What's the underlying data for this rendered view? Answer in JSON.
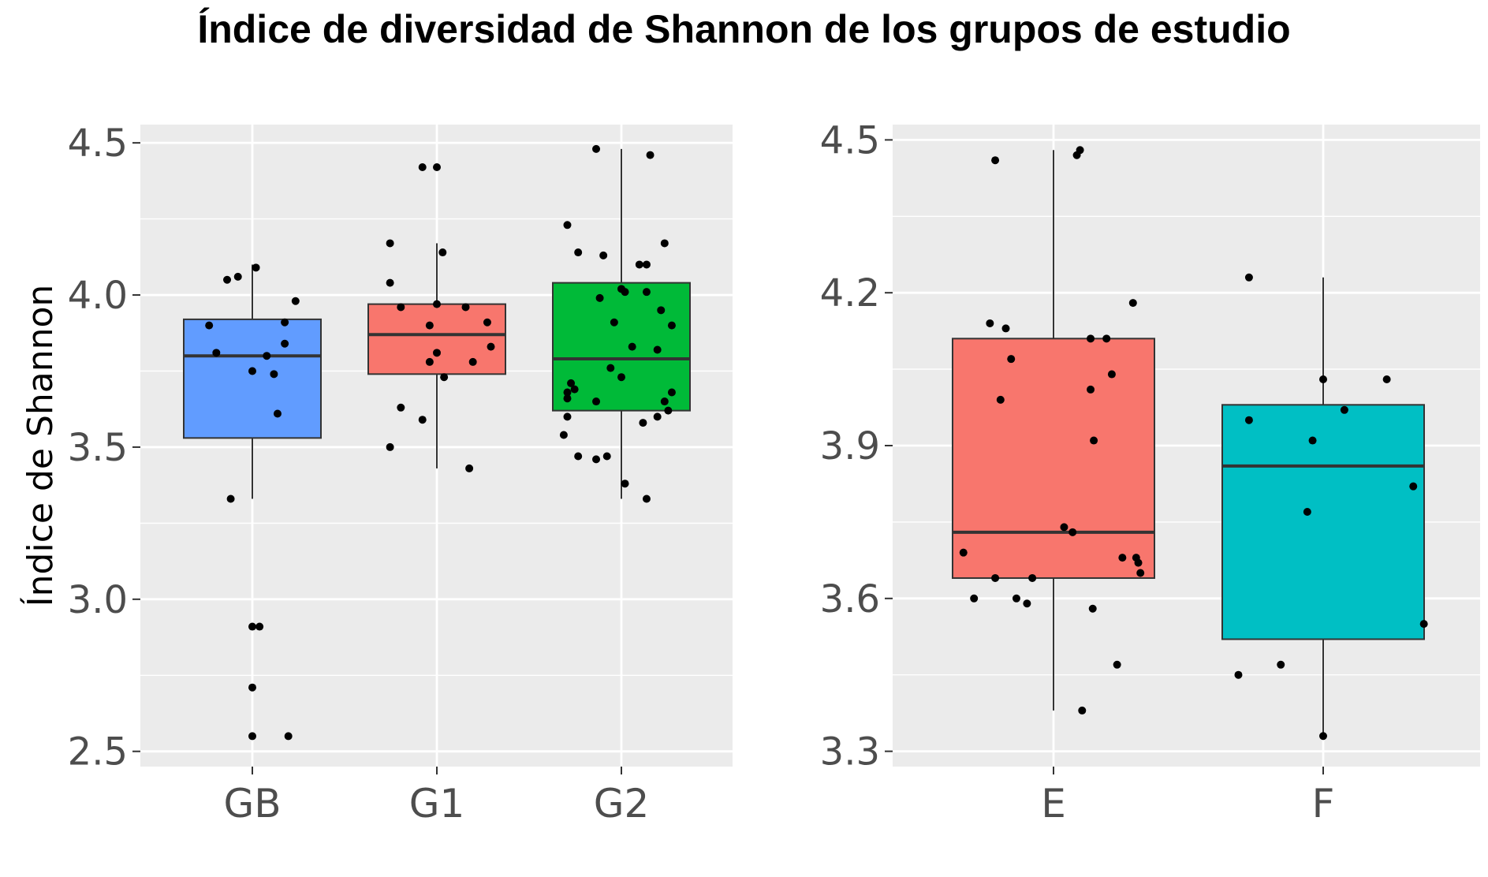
{
  "title": "Índice de diversidad de Shannon de los grupos de estudio",
  "chart_data": [
    {
      "type": "boxplot",
      "ylabel": "Índice de Shannon",
      "xlabel": "",
      "ylim": [
        2.45,
        4.56
      ],
      "yticks": [
        2.5,
        3.0,
        3.5,
        4.0,
        4.5
      ],
      "tick_labels": [
        "2.5",
        "3.0",
        "3.5",
        "4.0",
        "4.5"
      ],
      "grid": true,
      "categories": [
        "GB",
        "G1",
        "G2"
      ],
      "boxes": [
        {
          "name": "GB",
          "color": "#619CFF",
          "q1": 3.53,
          "median": 3.8,
          "q3": 3.92,
          "whisker_low": 3.33,
          "whisker_high": 4.1,
          "points": [
            [
              -0.6,
              3.9
            ],
            [
              -0.35,
              4.05
            ],
            [
              -0.2,
              4.06
            ],
            [
              0.05,
              4.09
            ],
            [
              0.6,
              3.98
            ],
            [
              0.45,
              3.91
            ],
            [
              0.45,
              3.84
            ],
            [
              -0.5,
              3.81
            ],
            [
              0.2,
              3.8
            ],
            [
              0.0,
              3.75
            ],
            [
              0.3,
              3.74
            ],
            [
              0.35,
              3.61
            ],
            [
              -0.3,
              3.33
            ],
            [
              0.0,
              2.91
            ],
            [
              0.1,
              2.91
            ],
            [
              0.0,
              2.71
            ],
            [
              0.0,
              2.55
            ],
            [
              0.5,
              2.55
            ]
          ]
        },
        {
          "name": "G1",
          "color": "#F8766D",
          "q1": 3.74,
          "median": 3.87,
          "q3": 3.97,
          "whisker_low": 3.43,
          "whisker_high": 4.17,
          "points": [
            [
              -0.2,
              4.42
            ],
            [
              0.0,
              4.42
            ],
            [
              0.08,
              4.14
            ],
            [
              -0.65,
              4.17
            ],
            [
              -0.65,
              4.04
            ],
            [
              -0.5,
              3.96
            ],
            [
              0.0,
              3.97
            ],
            [
              0.4,
              3.96
            ],
            [
              0.7,
              3.91
            ],
            [
              -0.1,
              3.9
            ],
            [
              0.75,
              3.83
            ],
            [
              0.0,
              3.81
            ],
            [
              -0.1,
              3.78
            ],
            [
              0.5,
              3.78
            ],
            [
              0.1,
              3.73
            ],
            [
              -0.5,
              3.63
            ],
            [
              -0.2,
              3.59
            ],
            [
              -0.65,
              3.5
            ],
            [
              0.45,
              3.43
            ]
          ]
        },
        {
          "name": "G2",
          "color": "#00BA38",
          "q1": 3.62,
          "median": 3.79,
          "q3": 4.04,
          "whisker_low": 3.33,
          "whisker_high": 4.48,
          "points": [
            [
              -0.35,
              4.48
            ],
            [
              0.4,
              4.46
            ],
            [
              -0.75,
              4.23
            ],
            [
              0.6,
              4.17
            ],
            [
              -0.6,
              4.14
            ],
            [
              -0.25,
              4.13
            ],
            [
              0.25,
              4.1
            ],
            [
              0.35,
              4.1
            ],
            [
              0.0,
              4.02
            ],
            [
              0.05,
              4.01
            ],
            [
              0.35,
              4.01
            ],
            [
              0.55,
              3.95
            ],
            [
              -0.3,
              3.99
            ],
            [
              -0.1,
              3.91
            ],
            [
              0.7,
              3.9
            ],
            [
              0.15,
              3.83
            ],
            [
              0.5,
              3.82
            ],
            [
              -0.15,
              3.76
            ],
            [
              0.0,
              3.73
            ],
            [
              -0.7,
              3.71
            ],
            [
              -0.65,
              3.69
            ],
            [
              -0.75,
              3.68
            ],
            [
              0.7,
              3.68
            ],
            [
              -0.35,
              3.65
            ],
            [
              -0.75,
              3.66
            ],
            [
              0.6,
              3.65
            ],
            [
              0.65,
              3.62
            ],
            [
              -0.75,
              3.6
            ],
            [
              0.5,
              3.6
            ],
            [
              0.3,
              3.58
            ],
            [
              -0.8,
              3.54
            ],
            [
              -0.6,
              3.47
            ],
            [
              -0.2,
              3.47
            ],
            [
              -0.35,
              3.46
            ],
            [
              0.05,
              3.38
            ],
            [
              0.35,
              3.33
            ]
          ]
        }
      ]
    },
    {
      "type": "boxplot",
      "ylabel": "",
      "xlabel": "",
      "ylim": [
        3.27,
        4.53
      ],
      "yticks": [
        3.3,
        3.6,
        3.9,
        4.2,
        4.5
      ],
      "tick_labels": [
        "3.3",
        "3.6",
        "3.9",
        "4.2",
        "4.5"
      ],
      "grid": true,
      "categories": [
        "E",
        "F"
      ],
      "boxes": [
        {
          "name": "E",
          "color": "#F8766D",
          "q1": 3.64,
          "median": 3.73,
          "q3": 4.11,
          "whisker_low": 3.38,
          "whisker_high": 4.48,
          "points": [
            [
              -0.55,
              4.46
            ],
            [
              0.25,
              4.48
            ],
            [
              0.22,
              4.47
            ],
            [
              0.75,
              4.18
            ],
            [
              -0.6,
              4.14
            ],
            [
              -0.45,
              4.13
            ],
            [
              -0.4,
              4.07
            ],
            [
              0.35,
              4.11
            ],
            [
              0.5,
              4.11
            ],
            [
              0.55,
              4.04
            ],
            [
              0.35,
              4.01
            ],
            [
              -0.5,
              3.99
            ],
            [
              0.38,
              3.91
            ],
            [
              0.1,
              3.74
            ],
            [
              0.18,
              3.73
            ],
            [
              -0.85,
              3.69
            ],
            [
              0.65,
              3.68
            ],
            [
              0.78,
              3.68
            ],
            [
              0.8,
              3.67
            ],
            [
              0.82,
              3.65
            ],
            [
              -0.55,
              3.64
            ],
            [
              -0.2,
              3.64
            ],
            [
              -0.35,
              3.6
            ],
            [
              -0.75,
              3.6
            ],
            [
              -0.25,
              3.59
            ],
            [
              0.37,
              3.58
            ],
            [
              0.6,
              3.47
            ],
            [
              0.27,
              3.38
            ]
          ]
        },
        {
          "name": "F",
          "color": "#00BFC4",
          "q1": 3.52,
          "median": 3.86,
          "q3": 3.98,
          "whisker_low": 3.33,
          "whisker_high": 4.23,
          "points": [
            [
              -0.7,
              4.23
            ],
            [
              0.6,
              4.03
            ],
            [
              0.0,
              4.03
            ],
            [
              0.2,
              3.97
            ],
            [
              -0.7,
              3.95
            ],
            [
              -0.1,
              3.91
            ],
            [
              0.85,
              3.82
            ],
            [
              -0.15,
              3.77
            ],
            [
              0.95,
              3.55
            ],
            [
              -0.8,
              3.45
            ],
            [
              -0.4,
              3.47
            ],
            [
              0.0,
              3.33
            ]
          ]
        }
      ]
    }
  ],
  "colors": {
    "panel_bg": "#EBEBEB",
    "grid": "#FFFFFF",
    "point": "#000000",
    "median": "#333333",
    "tick_text": "#4D4D4D"
  }
}
